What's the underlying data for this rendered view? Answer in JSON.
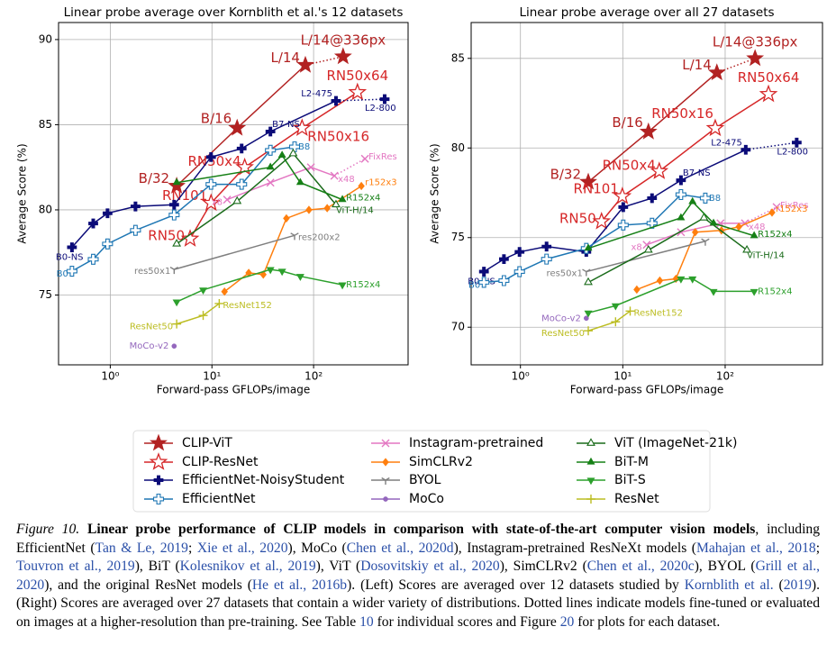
{
  "chart_data": [
    {
      "type": "line",
      "title": "Linear probe average over Kornblith et al.'s 12 datasets",
      "xlabel": "Forward-pass GFLOPs/image",
      "ylabel": "Average Score (%)",
      "xscale": "log",
      "grid": true,
      "xlim": [
        0.31,
        850
      ],
      "ylim": [
        70.9,
        91.0
      ],
      "xticks": [
        {
          "value": 1,
          "label": "10⁰"
        },
        {
          "value": 10,
          "label": "10¹"
        },
        {
          "value": 100,
          "label": "10²"
        }
      ],
      "yticks": [
        75,
        80,
        85,
        90
      ],
      "series": [
        {
          "x": [
            4.5,
            17.7,
            83,
            195
          ],
          "values": [
            81.4,
            84.8,
            88.5,
            89.0
          ],
          "point_labels": [
            "B/32",
            "B/16",
            "L/14",
            "L/14@336px"
          ],
          "dotted_last": true
        },
        {
          "x": [
            6.1,
            9.8,
            21,
            77,
            270
          ],
          "values": [
            78.3,
            80.4,
            82.5,
            84.8,
            86.9
          ],
          "point_labels": [
            "RN50",
            "RN101",
            "RN50x4",
            "RN50x16",
            "RN50x64"
          ],
          "dotted_last": false
        },
        {
          "x": [
            0.42,
            0.68,
            0.94,
            1.77,
            4.25,
            9.8,
            19.6,
            37.6,
            166,
            500
          ],
          "values": [
            77.8,
            79.2,
            79.8,
            80.2,
            80.3,
            83.1,
            83.6,
            84.6,
            86.4,
            86.5
          ],
          "point_labels": [
            "B0-NS",
            null,
            null,
            null,
            null,
            null,
            null,
            "B7-NS",
            "L2-475",
            "L2-800"
          ],
          "dotted_last": true
        },
        {
          "x": [
            0.42,
            0.68,
            0.94,
            1.77,
            4.25,
            9.8,
            19.6,
            37.6,
            65
          ],
          "values": [
            76.4,
            77.1,
            78.0,
            78.8,
            79.7,
            81.5,
            81.5,
            83.5,
            83.7
          ],
          "point_labels": [
            "B0",
            null,
            null,
            null,
            null,
            null,
            null,
            null,
            "B8"
          ],
          "dotted_last": false
        },
        {
          "x": [
            14.1,
            37.6,
            94,
            160,
            320
          ],
          "values": [
            80.6,
            81.6,
            82.5,
            82.0,
            83.0
          ],
          "point_labels": [
            "x8",
            null,
            null,
            "x48",
            "FixRes"
          ],
          "dotted_last": true
        },
        {
          "x": [
            13.3,
            23,
            32,
            54,
            90,
            136,
            295
          ],
          "values": [
            75.2,
            76.3,
            76.2,
            79.5,
            80.0,
            80.1,
            81.4
          ],
          "point_labels": [
            null,
            null,
            null,
            null,
            null,
            null,
            "r152x3"
          ],
          "dotted_last": false
        },
        {
          "x": [
            4.25,
            65
          ],
          "values": [
            76.5,
            78.5
          ],
          "point_labels": [
            "res50x1",
            "res200x2"
          ],
          "dotted_last": false
        },
        {
          "x": [
            4.25
          ],
          "values": [
            72.0
          ],
          "point_labels": [
            "MoCo-v2"
          ],
          "dotted_last": false
        },
        {
          "x": [
            4.5,
            17.7,
            63,
            166
          ],
          "values": [
            78.0,
            80.5,
            83.3,
            80.3
          ],
          "point_labels": [
            null,
            null,
            null,
            "ViT-H/14"
          ],
          "dotted_last": false
        },
        {
          "x": [
            4.5,
            37.6,
            49,
            74,
            192
          ],
          "values": [
            81.6,
            82.5,
            83.2,
            81.6,
            80.6
          ],
          "point_labels": [
            null,
            null,
            null,
            null,
            "R152x4"
          ],
          "dotted_last": false
        },
        {
          "x": [
            4.5,
            8.2,
            37.6,
            49,
            74,
            192
          ],
          "values": [
            74.6,
            75.3,
            76.5,
            76.4,
            76.1,
            75.6
          ],
          "point_labels": [
            null,
            null,
            null,
            null,
            null,
            "R152x4"
          ],
          "dotted_last": false
        },
        {
          "x": [
            4.5,
            8.2,
            11.8
          ],
          "values": [
            73.3,
            73.8,
            74.5
          ],
          "point_labels": [
            "ResNet50",
            null,
            "ResNet152"
          ],
          "dotted_last": false
        }
      ]
    },
    {
      "type": "line",
      "title": "Linear probe average over all 27 datasets",
      "xlabel": "Forward-pass GFLOPs/image",
      "ylabel": "Average Score (%)",
      "xscale": "log",
      "grid": true,
      "xlim": [
        0.33,
        893
      ],
      "ylim": [
        67.9,
        87.0
      ],
      "xticks": [
        {
          "value": 1,
          "label": "10⁰"
        },
        {
          "value": 10,
          "label": "10¹"
        },
        {
          "value": 100,
          "label": "10²"
        }
      ],
      "yticks": [
        70,
        75,
        80,
        85
      ],
      "series": [
        {
          "x": [
            4.6,
            17.8,
            83,
            196
          ],
          "values": [
            78.1,
            80.9,
            84.2,
            85.0
          ],
          "point_labels": [
            "B/32",
            "B/16",
            "L/14",
            "L/14@336px"
          ],
          "dotted_last": true
        },
        {
          "x": [
            6.2,
            9.9,
            22.7,
            80,
            265
          ],
          "values": [
            75.9,
            77.3,
            78.7,
            81.1,
            83.0
          ],
          "point_labels": [
            "RN50",
            "RN101",
            "RN50x4",
            "RN50x16",
            "RN50x64"
          ],
          "dotted_last": false
        },
        {
          "x": [
            0.44,
            0.69,
            0.98,
            1.8,
            4.4,
            10.1,
            19.3,
            37,
            159,
            500
          ],
          "values": [
            73.1,
            73.8,
            74.2,
            74.5,
            74.2,
            76.7,
            77.2,
            78.2,
            79.9,
            80.3
          ],
          "point_labels": [
            "B0-NS",
            null,
            null,
            null,
            null,
            null,
            null,
            "B7-NS",
            "L2-475",
            "L2-800"
          ],
          "dotted_last": true
        },
        {
          "x": [
            0.44,
            0.69,
            0.98,
            1.8,
            4.4,
            10.1,
            19.3,
            37,
            64
          ],
          "values": [
            72.5,
            72.6,
            73.1,
            73.8,
            74.4,
            75.7,
            75.8,
            77.4,
            77.2
          ],
          "point_labels": [
            "B0",
            null,
            null,
            null,
            null,
            null,
            null,
            null,
            "B8"
          ],
          "dotted_last": false
        },
        {
          "x": [
            17.1,
            37,
            90,
            156,
            318
          ],
          "values": [
            74.6,
            75.3,
            75.8,
            75.8,
            76.7
          ],
          "point_labels": [
            "x8",
            null,
            null,
            "x48",
            "FixRes"
          ],
          "dotted_last": true
        },
        {
          "x": [
            13.7,
            23,
            33,
            51,
            92,
            136,
            287
          ],
          "values": [
            72.1,
            72.6,
            72.7,
            75.3,
            75.4,
            75.6,
            76.4
          ],
          "point_labels": [
            null,
            null,
            null,
            null,
            null,
            null,
            "r152x3"
          ],
          "dotted_last": false
        },
        {
          "x": [
            4.4,
            64
          ],
          "values": [
            73.1,
            74.8
          ],
          "point_labels": [
            "res50x1",
            null
          ],
          "dotted_last": false
        },
        {
          "x": [
            4.4
          ],
          "values": [
            70.5
          ],
          "point_labels": [
            "MoCo-v2"
          ],
          "dotted_last": false
        },
        {
          "x": [
            4.6,
            17.8,
            62,
            163
          ],
          "values": [
            72.5,
            74.3,
            76.1,
            74.3
          ],
          "point_labels": [
            null,
            null,
            null,
            "ViT-H/14"
          ],
          "dotted_last": false
        },
        {
          "x": [
            4.6,
            37,
            48,
            77,
            192
          ],
          "values": [
            74.4,
            76.1,
            77.0,
            75.8,
            75.1
          ],
          "point_labels": [
            null,
            null,
            null,
            null,
            "R152x4"
          ],
          "dotted_last": false
        },
        {
          "x": [
            4.6,
            8.5,
            37,
            48,
            77,
            192
          ],
          "values": [
            70.8,
            71.2,
            72.7,
            72.7,
            72.0,
            72.0
          ],
          "point_labels": [
            null,
            null,
            null,
            null,
            null,
            "R152x4"
          ],
          "dotted_last": false
        },
        {
          "x": [
            4.6,
            8.5,
            11.8
          ],
          "values": [
            69.8,
            70.3,
            70.9
          ],
          "point_labels": [
            "ResNet50",
            null,
            "ResNet152"
          ],
          "dotted_last": false
        }
      ]
    }
  ],
  "legend": {
    "entries": [
      {
        "name": "CLIP-ViT",
        "color": "#b22222",
        "marker": "star"
      },
      {
        "name": "CLIP-ResNet",
        "color": "#d62728",
        "marker": "star-open"
      },
      {
        "name": "EfficientNet-NoisyStudent",
        "color": "#0b0b78",
        "marker": "plus"
      },
      {
        "name": "EfficientNet",
        "color": "#1f77b4",
        "marker": "plus-open"
      },
      {
        "name": "Instagram-pretrained",
        "color": "#e377c2",
        "marker": "x"
      },
      {
        "name": "SimCLRv2",
        "color": "#ff7f0e",
        "marker": "diamond"
      },
      {
        "name": "BYOL",
        "color": "#7f7f7f",
        "marker": "tri-down"
      },
      {
        "name": "MoCo",
        "color": "#9467bd",
        "marker": "circle"
      },
      {
        "name": "ViT (ImageNet-21k)",
        "color": "#1a6b1a",
        "marker": "triangle-open"
      },
      {
        "name": "BiT-M",
        "color": "#168016",
        "marker": "triangle"
      },
      {
        "name": "BiT-S",
        "color": "#2ca02c",
        "marker": "triangle-down"
      },
      {
        "name": "ResNet",
        "color": "#bcbd22",
        "marker": "plus-thin"
      }
    ]
  },
  "caption": {
    "label": "Figure 10.",
    "title": "Linear probe performance of CLIP models in comparison with state-of-the-art computer vision models",
    "parts": [
      ", including EfficientNet (",
      {
        "text": "Tan & Le, 2019",
        "cite": true
      },
      "; ",
      {
        "text": "Xie et al., 2020",
        "cite": true
      },
      "), MoCo (",
      {
        "text": "Chen et al., 2020d",
        "cite": true
      },
      "), Instagram-pretrained ResNeXt models (",
      {
        "text": "Mahajan et al., 2018",
        "cite": true
      },
      "; ",
      {
        "text": "Touvron et al., 2019",
        "cite": true
      },
      "), BiT (",
      {
        "text": "Kolesnikov et al., 2019",
        "cite": true
      },
      "), ViT (",
      {
        "text": "Dosovitskiy et al., 2020",
        "cite": true
      },
      "), SimCLRv2 (",
      {
        "text": "Chen et al., 2020c",
        "cite": true
      },
      "), BYOL (",
      {
        "text": "Grill et al., 2020",
        "cite": true
      },
      "), and the original ResNet models (",
      {
        "text": "He et al., 2016b",
        "cite": true
      },
      "). (Left) Scores are averaged over 12 datasets studied by ",
      {
        "text": "Kornblith et al.",
        "cite": true
      },
      " (",
      {
        "text": "2019",
        "cite": true
      },
      "). (Right) Scores are averaged over 27 datasets that contain a wider variety of distributions. Dotted lines indicate models fine-tuned or evaluated on images at a higher-resolution than pre-training. See Table ",
      {
        "text": "10",
        "cite": true
      },
      " for individual scores and Figure ",
      {
        "text": "20",
        "cite": true
      },
      " for plots for each dataset."
    ]
  }
}
